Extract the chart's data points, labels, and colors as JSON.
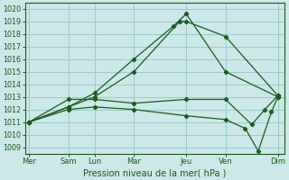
{
  "title": "Pression niveau de la mer( hPa )",
  "bg_color": "#cce8e8",
  "grid_color": "#99cccc",
  "line_color": "#1a5c1a",
  "ylim": [
    1008.5,
    1020.5
  ],
  "yticks": [
    1009,
    1010,
    1011,
    1012,
    1013,
    1014,
    1015,
    1016,
    1017,
    1018,
    1019,
    1020
  ],
  "x_labels": [
    "Mer",
    "Sam",
    "Lun",
    "Mar",
    "Jeu",
    "Ven",
    "Dim"
  ],
  "x_tick_positions": [
    0,
    3,
    5,
    8,
    12,
    15,
    19
  ],
  "xlim": [
    -0.3,
    19.5
  ],
  "lines": [
    {
      "x": [
        0,
        3,
        5,
        8,
        11,
        12,
        15,
        19
      ],
      "y": [
        1011.0,
        1012.2,
        1013.3,
        1016.0,
        1018.5,
        1019.6,
        1015.0,
        1013.0
      ]
    },
    {
      "x": [
        0,
        3,
        5,
        8,
        11.5,
        12,
        15,
        19
      ],
      "y": [
        1011.0,
        1012.2,
        1013.0,
        1015.0,
        1019.0,
        1019.0,
        1017.8,
        1013.1
      ]
    },
    {
      "x": [
        0,
        3,
        5,
        8,
        12,
        15,
        17,
        18,
        19
      ],
      "y": [
        1011.0,
        1012.8,
        1012.8,
        1012.5,
        1012.8,
        1012.8,
        1010.8,
        1012.0,
        1013.1
      ]
    },
    {
      "x": [
        0,
        3,
        5,
        8,
        12,
        15,
        16.5,
        17.5,
        18.5,
        19
      ],
      "y": [
        1011.0,
        1012.0,
        1012.2,
        1012.0,
        1011.5,
        1011.2,
        1010.5,
        1008.7,
        1011.8,
        1013.0
      ]
    }
  ]
}
